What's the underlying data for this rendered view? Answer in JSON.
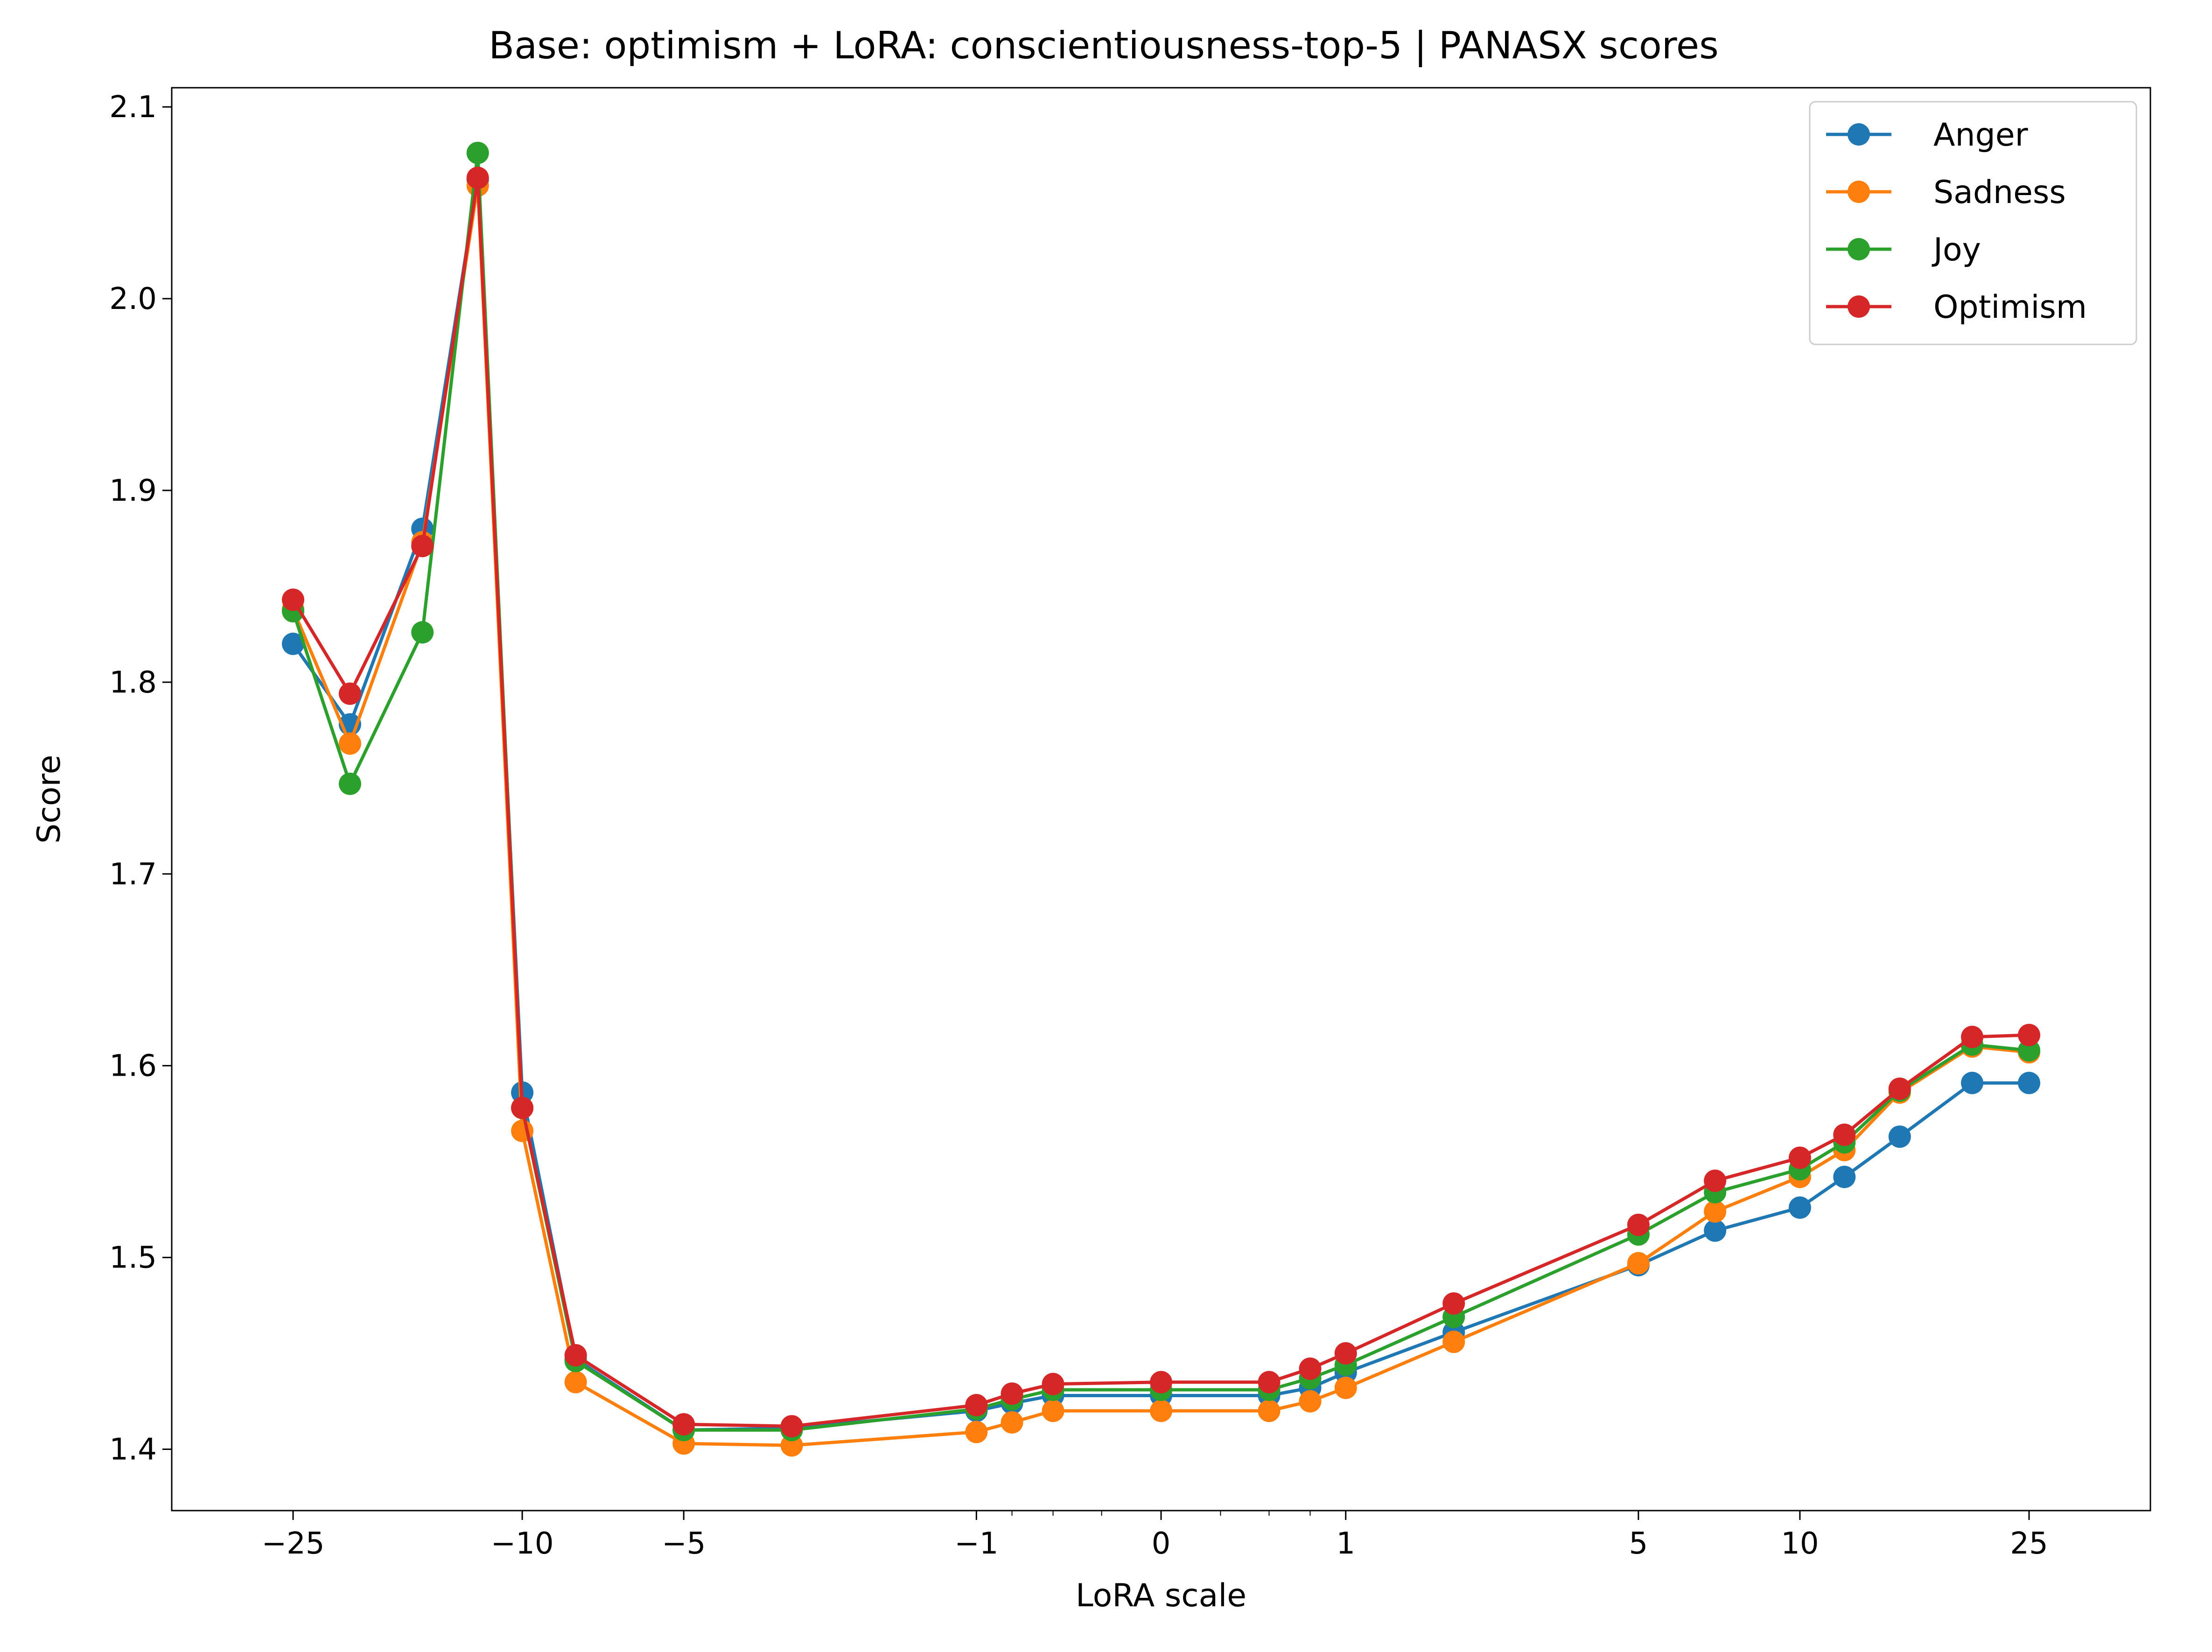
{
  "chart_data": {
    "type": "line",
    "title": "Base: optimism + LoRA: conscientiousness-top-5 | PANASX scores",
    "xlabel": "LoRA scale",
    "ylabel": "Score",
    "x_scale": "symlog",
    "xlim": [
      -40,
      40
    ],
    "ylim": [
      1.368,
      2.11
    ],
    "grid": false,
    "legend_position": "top-right",
    "x_tick_labels": [
      "−25",
      "−10",
      "−5",
      "−1",
      "0",
      "1",
      "5",
      "10",
      "25"
    ],
    "x_ticks": [
      -25,
      -10,
      -5,
      -1,
      0,
      1,
      5,
      10,
      25
    ],
    "y_ticks": [
      1.4,
      1.5,
      1.6,
      1.7,
      1.8,
      1.9,
      2.0,
      2.1
    ],
    "y_tick_labels": [
      "1.4",
      "1.5",
      "1.6",
      "1.7",
      "1.8",
      "1.9",
      "2.0",
      "2.1"
    ],
    "x": [
      -25,
      -20,
      -15,
      -12,
      -10,
      -8,
      -5,
      -3,
      -1,
      -0.75,
      -0.5,
      0,
      0.5,
      0.75,
      1,
      2,
      5,
      7,
      10,
      12,
      15,
      20,
      25
    ],
    "series": [
      {
        "name": "Anger",
        "color": "#1f77b4",
        "values": [
          1.82,
          1.778,
          1.88,
          2.062,
          1.586,
          1.447,
          1.41,
          1.411,
          1.42,
          1.424,
          1.428,
          1.428,
          1.428,
          1.432,
          1.44,
          1.461,
          1.496,
          1.514,
          1.526,
          1.542,
          1.563,
          1.591,
          1.591
        ]
      },
      {
        "name": "Sadness",
        "color": "#ff7f0e",
        "values": [
          1.838,
          1.768,
          1.873,
          2.059,
          1.566,
          1.435,
          1.403,
          1.402,
          1.409,
          1.414,
          1.42,
          1.42,
          1.42,
          1.425,
          1.432,
          1.456,
          1.497,
          1.524,
          1.542,
          1.556,
          1.586,
          1.61,
          1.607
        ]
      },
      {
        "name": "Joy",
        "color": "#2ca02c",
        "values": [
          1.837,
          1.747,
          1.826,
          2.076,
          1.578,
          1.446,
          1.41,
          1.41,
          1.421,
          1.426,
          1.431,
          1.431,
          1.431,
          1.437,
          1.444,
          1.469,
          1.512,
          1.534,
          1.546,
          1.56,
          1.587,
          1.611,
          1.608
        ]
      },
      {
        "name": "Optimism",
        "color": "#d62728",
        "values": [
          1.843,
          1.794,
          1.871,
          2.063,
          1.578,
          1.449,
          1.413,
          1.412,
          1.423,
          1.429,
          1.434,
          1.435,
          1.435,
          1.442,
          1.45,
          1.476,
          1.517,
          1.54,
          1.552,
          1.564,
          1.588,
          1.615,
          1.616
        ]
      }
    ]
  }
}
